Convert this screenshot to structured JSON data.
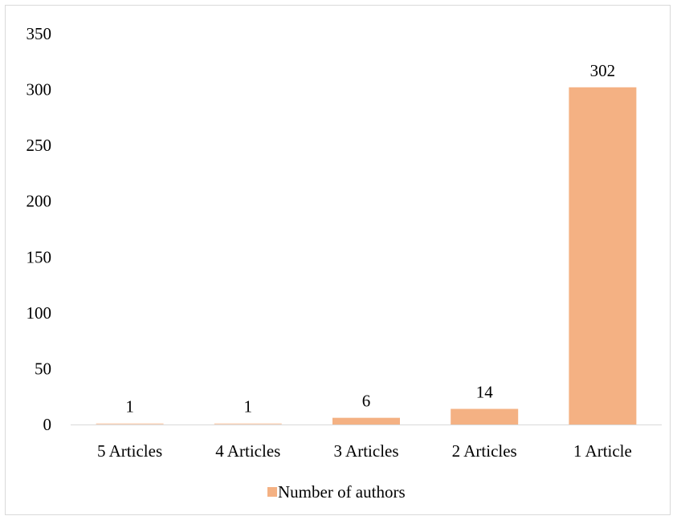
{
  "chart_data": {
    "type": "bar",
    "categories": [
      "5 Articles",
      "4 Articles",
      "3 Articles",
      "2 Articles",
      "1 Article"
    ],
    "series": [
      {
        "name": "Number of authors",
        "values": [
          1,
          1,
          6,
          14,
          302
        ],
        "color": "#f4b183"
      }
    ],
    "data_labels": [
      "1",
      "1",
      "6",
      "14",
      "302"
    ],
    "ylim": [
      0,
      350
    ],
    "yticks": [
      0,
      50,
      100,
      150,
      200,
      250,
      300,
      350
    ],
    "grid": false,
    "legend_position": "bottom",
    "axis_color": "#d9d9d9"
  }
}
